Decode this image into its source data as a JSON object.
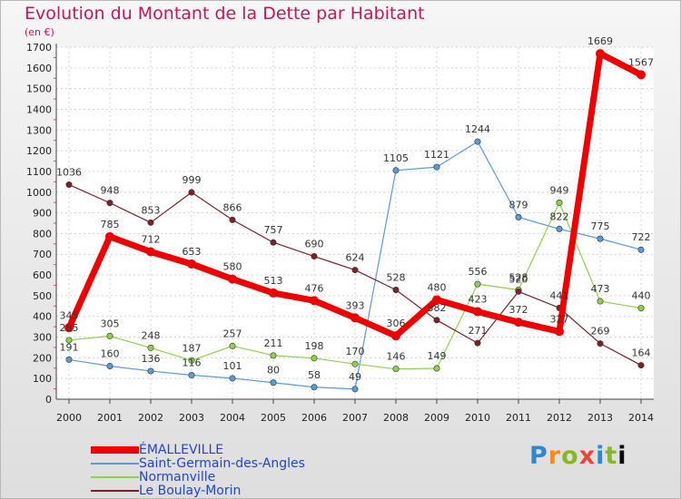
{
  "header": {
    "title": "Evolution du Montant de la Dette par Habitant",
    "unit": "(en €)"
  },
  "brand": {
    "letters": [
      "P",
      "r",
      "o",
      "x",
      "i",
      "t",
      "i"
    ]
  },
  "chart_data": {
    "type": "line",
    "title": "Evolution du Montant de la Dette par Habitant",
    "ylabel": "(en €)",
    "xlabel": "",
    "ylim": [
      0,
      1700
    ],
    "yticks": [
      0,
      100,
      200,
      300,
      400,
      500,
      600,
      700,
      800,
      900,
      1000,
      1100,
      1200,
      1300,
      1400,
      1500,
      1600,
      1700
    ],
    "x": [
      "2000",
      "2001",
      "2002",
      "2003",
      "2004",
      "2005",
      "2006",
      "2007",
      "2008",
      "2009",
      "2010",
      "2011",
      "2012",
      "2013",
      "2014"
    ],
    "grid": true,
    "legend_position": "bottom-left",
    "series": [
      {
        "name": "ÉMALLEVILLE",
        "color": "#ee0000",
        "values": [
          345,
          785,
          712,
          653,
          580,
          513,
          476,
          393,
          306,
          480,
          423,
          372,
          327,
          1669,
          1567
        ],
        "labels": [
          "345",
          "785",
          "712",
          "653",
          "580",
          "513",
          "476",
          "393",
          "306",
          "480",
          "423",
          "372",
          "327",
          "1669",
          "1567"
        ]
      },
      {
        "name": "Saint-Germain-des-Angles",
        "color": "#5b9bd5",
        "values": [
          191,
          160,
          136,
          116,
          101,
          80,
          58,
          49,
          1105,
          1121,
          1244,
          879,
          822,
          775,
          722
        ],
        "labels": [
          "191",
          "160",
          "136",
          "116",
          "101",
          "80",
          "58",
          "49",
          "1105",
          "1121",
          "1244",
          "879",
          "822",
          "775",
          "722"
        ]
      },
      {
        "name": "Normanville",
        "color": "#8fd14f",
        "values": [
          285,
          305,
          248,
          187,
          257,
          211,
          198,
          170,
          146,
          149,
          556,
          528,
          949,
          473,
          440
        ],
        "labels": [
          "285",
          "305",
          "248",
          "187",
          "257",
          "211",
          "198",
          "170",
          "146",
          "149",
          "556",
          "528",
          "949",
          "473",
          "440"
        ]
      },
      {
        "name": "Le Boulay-Morin",
        "color": "#7a2226",
        "values": [
          1036,
          948,
          853,
          999,
          866,
          757,
          690,
          624,
          528,
          382,
          271,
          520,
          441,
          269,
          164
        ],
        "labels": [
          "1036",
          "948",
          "853",
          "999",
          "866",
          "757",
          "690",
          "624",
          "528",
          "382",
          "271",
          "520",
          "441",
          "269",
          "164"
        ]
      }
    ]
  }
}
